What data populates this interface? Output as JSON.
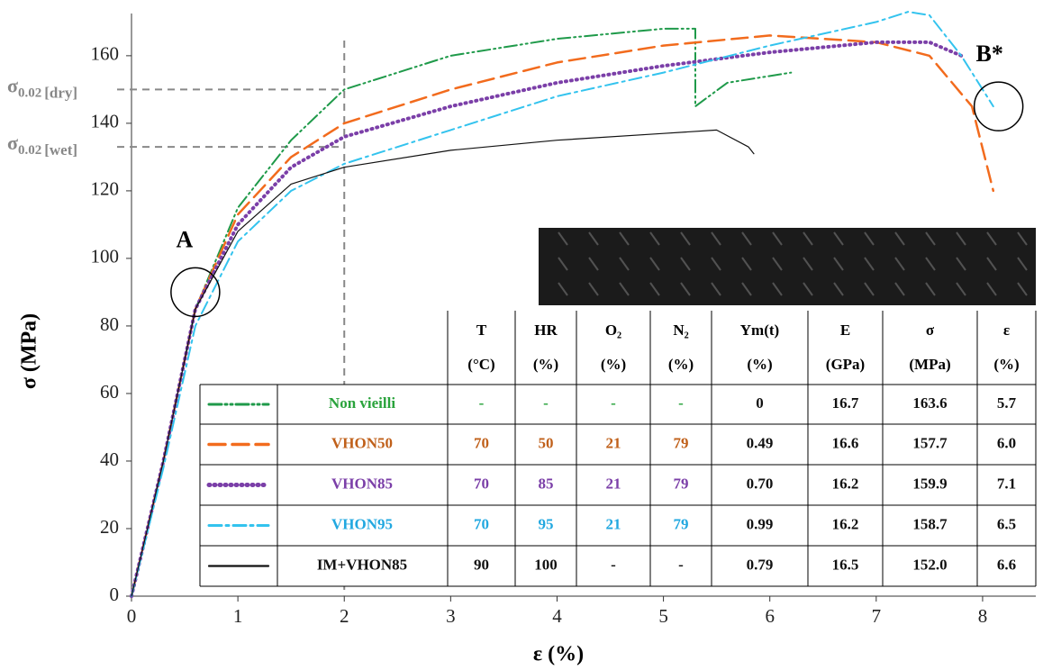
{
  "chart_data": {
    "type": "line",
    "xlabel": "ε (%)",
    "ylabel": "σ (MPa)",
    "xlim": [
      0,
      8.5
    ],
    "ylim": [
      0,
      172.5
    ],
    "xticks": [
      0,
      1,
      2,
      3,
      4,
      5,
      6,
      7,
      8
    ],
    "yticks": [
      0,
      20,
      40,
      60,
      80,
      100,
      120,
      140,
      160
    ],
    "grid": false,
    "reference_lines": [
      {
        "symbol": "σ",
        "subscript": "0.02",
        "suffix": "[dry]",
        "value": 150
      },
      {
        "symbol": "σ",
        "subscript": "0.02",
        "suffix": "[wet]",
        "value": 133
      }
    ],
    "vertical_line": 2,
    "points": [
      {
        "label": "A",
        "x": 0.6,
        "y": 90
      },
      {
        "label": "B*",
        "x": 8.15,
        "y": 145
      }
    ],
    "series": [
      {
        "name": "Non vieilli",
        "color": "#1f9a4a",
        "text_color": "#2aa33c",
        "dash": "14 4 2 4 2 4",
        "width": 2,
        "x": [
          0,
          0.3,
          0.6,
          1,
          1.5,
          2,
          3,
          4,
          5,
          5.3,
          5.3,
          5.6,
          6.2
        ],
        "values": [
          0,
          40,
          85,
          115,
          135,
          150,
          160,
          165,
          168,
          168,
          145,
          152,
          155
        ]
      },
      {
        "name": "VHON50",
        "color": "#f26b1d",
        "text_color": "#c0601a",
        "dash": "18 8",
        "width": 2.5,
        "x": [
          0,
          0.3,
          0.6,
          1,
          1.5,
          2,
          3,
          4,
          5,
          6,
          7,
          7.5,
          7.9,
          8.1
        ],
        "values": [
          0,
          40,
          85,
          113,
          130,
          140,
          150,
          158,
          163,
          166,
          164,
          160,
          145,
          120
        ]
      },
      {
        "name": "VHON85",
        "color": "#7b3fa8",
        "text_color": "#7b3fa8",
        "dash": "1 5",
        "width": 4,
        "x": [
          0,
          0.3,
          0.6,
          1,
          1.5,
          2,
          3,
          4,
          5,
          6,
          7,
          7.5,
          7.8
        ],
        "values": [
          0,
          40,
          85,
          110,
          127,
          136,
          145,
          152,
          157,
          161,
          164,
          164,
          160
        ]
      },
      {
        "name": "VHON95",
        "color": "#33c3ee",
        "text_color": "#22a8e0",
        "dash": "14 5 3 5",
        "width": 2,
        "x": [
          0,
          0.3,
          0.6,
          1,
          1.5,
          2,
          3,
          4,
          5,
          6,
          7,
          7.3,
          7.5,
          7.8,
          8.1
        ],
        "values": [
          0,
          38,
          80,
          105,
          120,
          128,
          138,
          148,
          155,
          163,
          170,
          173,
          172,
          160,
          145
        ]
      },
      {
        "name": "IM+VHON85",
        "color": "#111111",
        "text_color": "#111111",
        "dash": "none",
        "width": 1.2,
        "x": [
          0,
          0.3,
          0.6,
          1,
          1.5,
          2,
          3,
          4,
          5,
          5.5,
          5.8,
          5.85
        ],
        "values": [
          0,
          40,
          85,
          108,
          122,
          127,
          132,
          135,
          137,
          138,
          133,
          131
        ]
      }
    ],
    "table": {
      "header": [
        [
          "T",
          "(°C)"
        ],
        [
          "HR",
          "(%)"
        ],
        [
          "O₂",
          "(%)"
        ],
        [
          "N₂",
          "(%)"
        ],
        [
          "Ym(t)",
          "(%)"
        ],
        [
          "E",
          "(GPa)"
        ],
        [
          "σ",
          "(MPa)"
        ],
        [
          "ε",
          "(%)"
        ]
      ],
      "rows": [
        [
          "-",
          "-",
          "-",
          "-",
          "0",
          "16.7",
          "163.6",
          "5.7"
        ],
        [
          "70",
          "50",
          "21",
          "79",
          "0.49",
          "16.6",
          "157.7",
          "6.0"
        ],
        [
          "70",
          "85",
          "21",
          "79",
          "0.70",
          "16.2",
          "159.9",
          "7.1"
        ],
        [
          "70",
          "95",
          "21",
          "79",
          "0.99",
          "16.2",
          "158.7",
          "6.5"
        ],
        [
          "90",
          "100",
          "-",
          "-",
          "0.79",
          "16.5",
          "152.0",
          "6.6"
        ]
      ]
    }
  }
}
